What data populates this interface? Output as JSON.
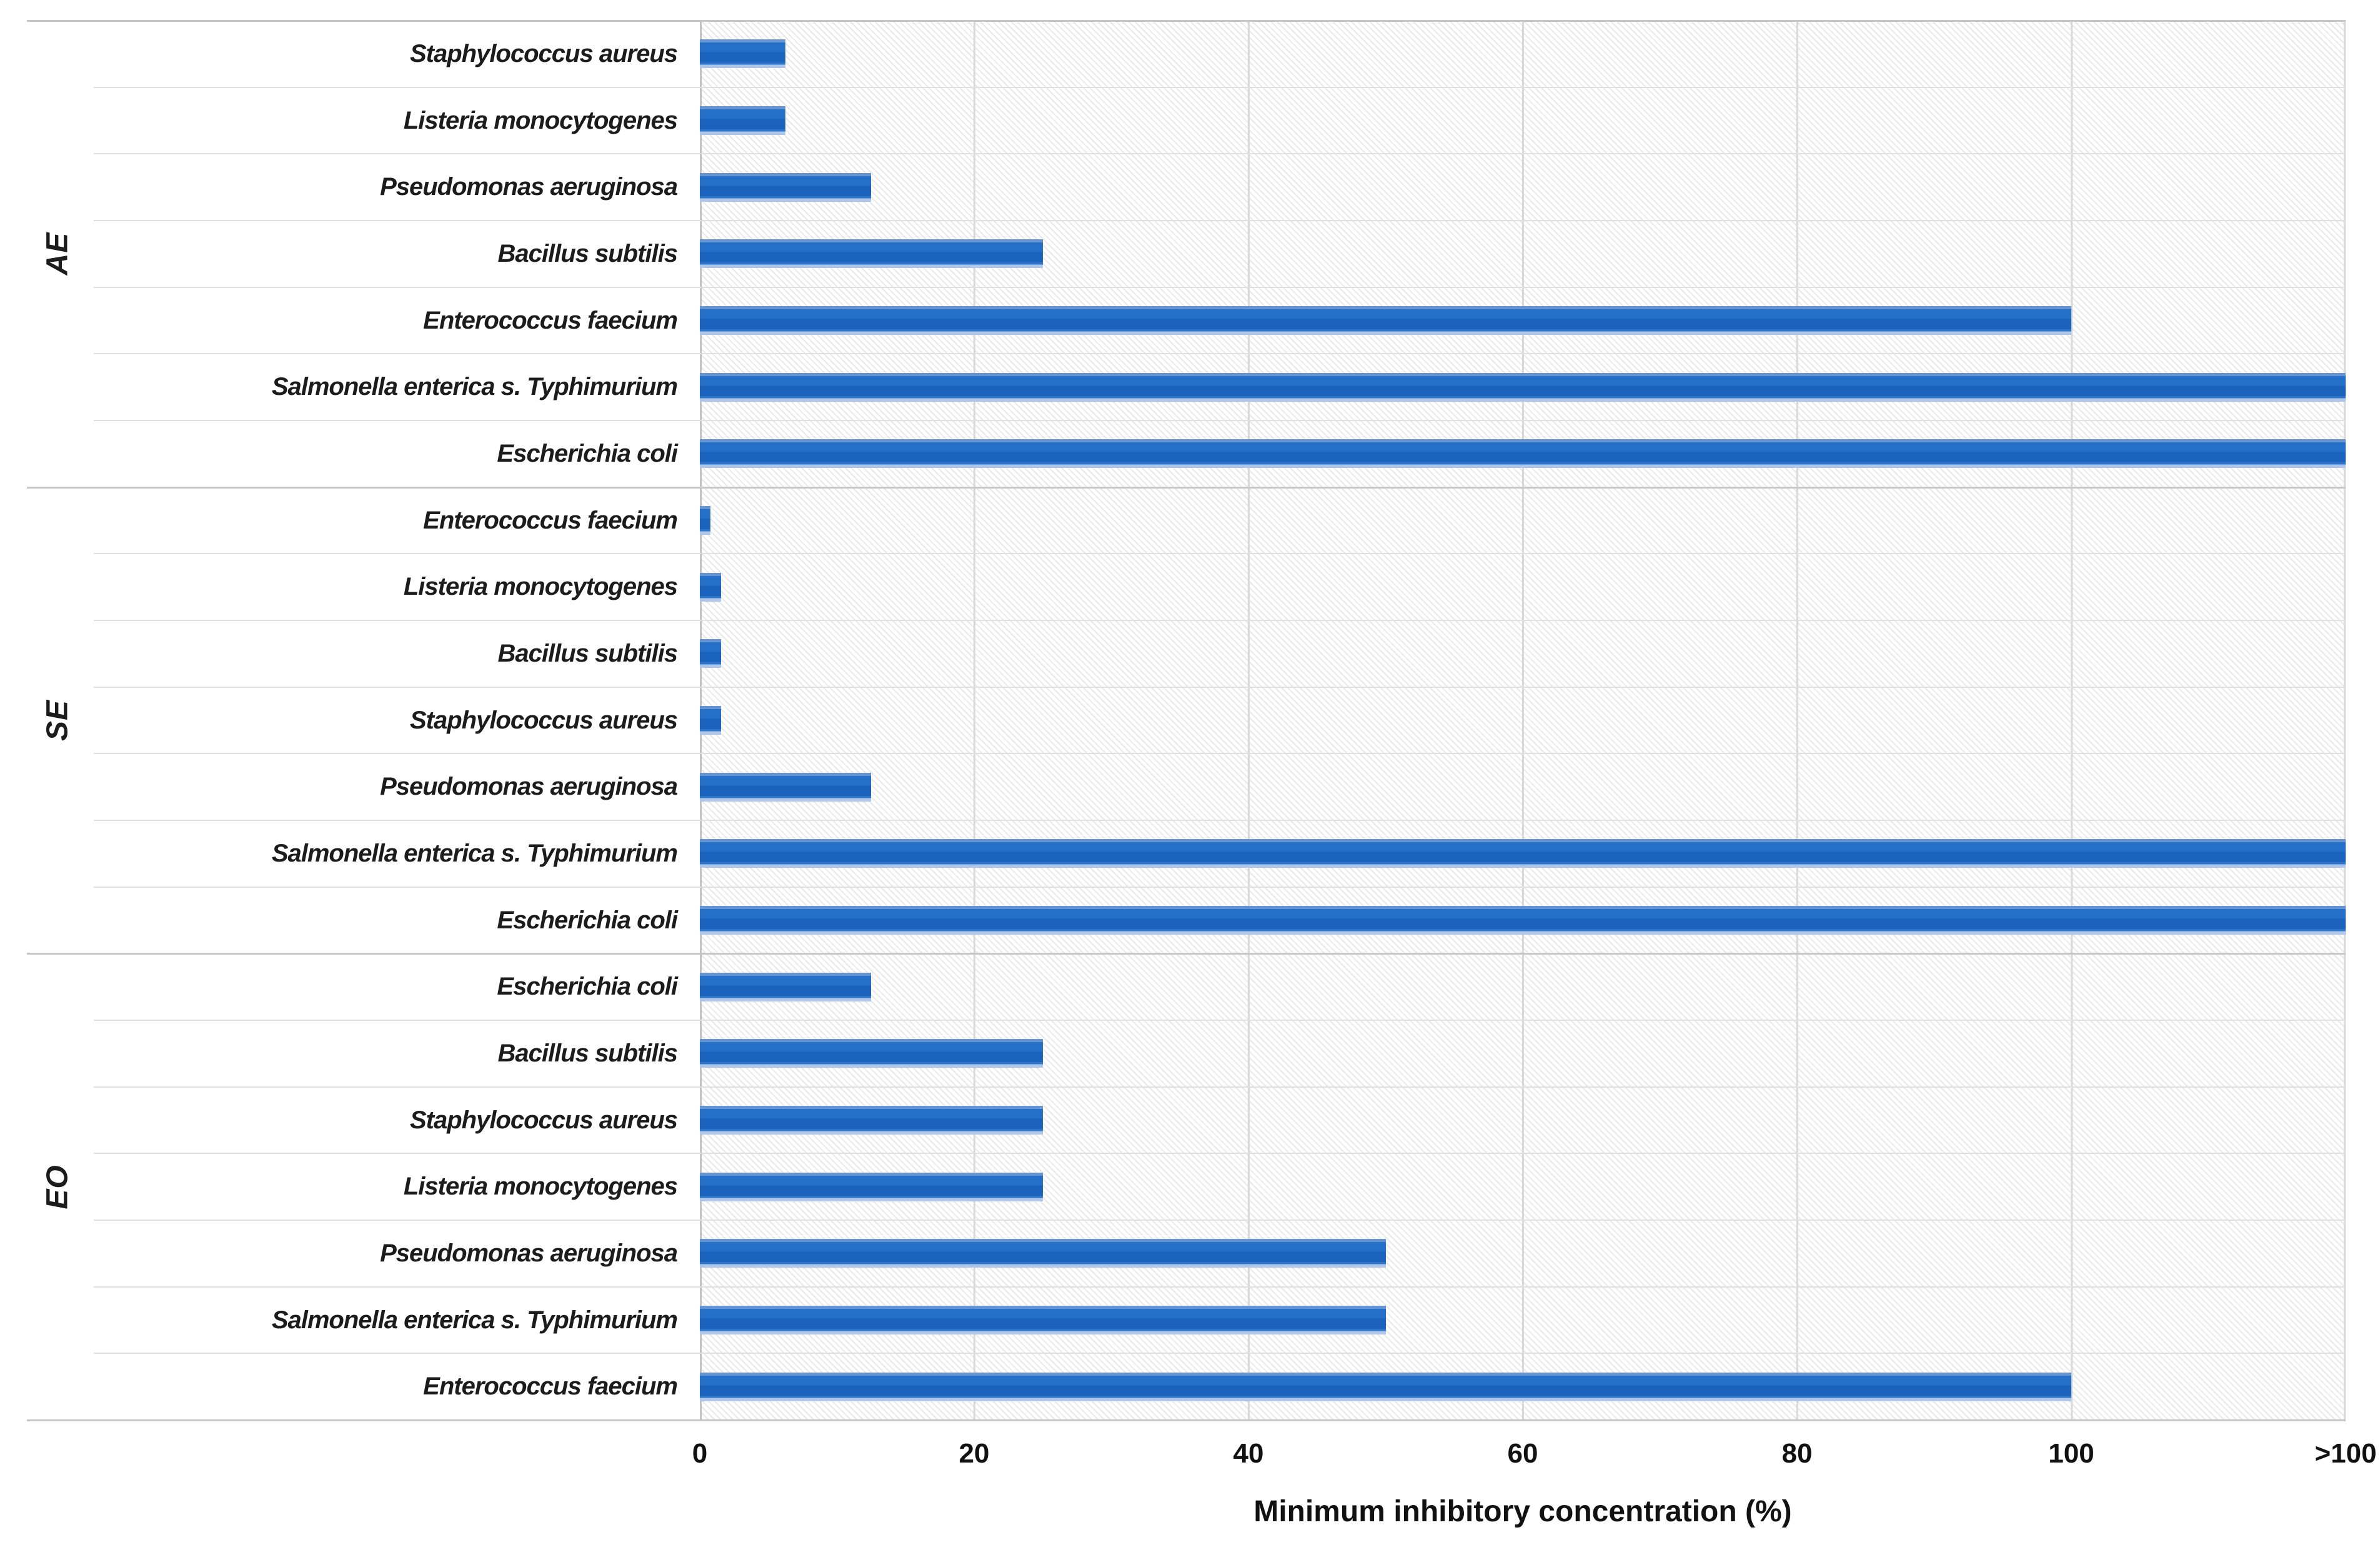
{
  "chart_data": {
    "type": "bar",
    "orientation": "horizontal",
    "title": "",
    "xlabel": "Minimum inhibitory concentration (%)",
    "ylabel": "",
    "x_ticks": [
      "0",
      "20",
      "40",
      "60",
      "80",
      "100",
      ">100"
    ],
    "x_tick_values": [
      0,
      20,
      40,
      60,
      80,
      100,
      120
    ],
    "xlim": [
      0,
      120
    ],
    "overflow_rule": "bars labeled >100 are drawn to the right end of the axis",
    "grid": "on",
    "legend": "none",
    "bar_color": "#1e68c3",
    "bar_edge_top_color": "#6593d3",
    "bar_edge_bottom_color": "#aec6e9",
    "gridline_color": "#d9d9d9",
    "hatch_background": true,
    "groups": [
      {
        "label": "AE",
        "rows": [
          {
            "organism": "Staphylococcus aureus",
            "mic": 6.25
          },
          {
            "organism": "Listeria monocytogenes",
            "mic": 6.25
          },
          {
            "organism": "Pseudomonas aeruginosa",
            "mic": 12.5
          },
          {
            "organism": "Bacillus subtilis",
            "mic": 25
          },
          {
            "organism": "Enterococcus faecium",
            "mic": 100
          },
          {
            "organism": "Salmonella enterica s. Typhimurium",
            "mic": ">100"
          },
          {
            "organism": "Escherichia coli",
            "mic": ">100"
          }
        ]
      },
      {
        "label": "SE",
        "rows": [
          {
            "organism": "Enterococcus faecium",
            "mic": 0.78
          },
          {
            "organism": "Listeria monocytogenes",
            "mic": 1.56
          },
          {
            "organism": "Bacillus subtilis",
            "mic": 1.56
          },
          {
            "organism": "Staphylococcus aureus",
            "mic": 1.56
          },
          {
            "organism": "Pseudomonas aeruginosa",
            "mic": 12.5
          },
          {
            "organism": "Salmonella enterica s. Typhimurium",
            "mic": ">100"
          },
          {
            "organism": "Escherichia coli",
            "mic": ">100"
          }
        ]
      },
      {
        "label": "EO",
        "rows": [
          {
            "organism": "Escherichia coli",
            "mic": 12.5
          },
          {
            "organism": "Bacillus subtilis",
            "mic": 25
          },
          {
            "organism": "Staphylococcus aureus",
            "mic": 25
          },
          {
            "organism": "Listeria monocytogenes",
            "mic": 25
          },
          {
            "organism": "Pseudomonas aeruginosa",
            "mic": 50
          },
          {
            "organism": "Salmonella enterica s. Typhimurium",
            "mic": 50
          },
          {
            "organism": "Enterococcus faecium",
            "mic": 100
          }
        ]
      }
    ]
  }
}
